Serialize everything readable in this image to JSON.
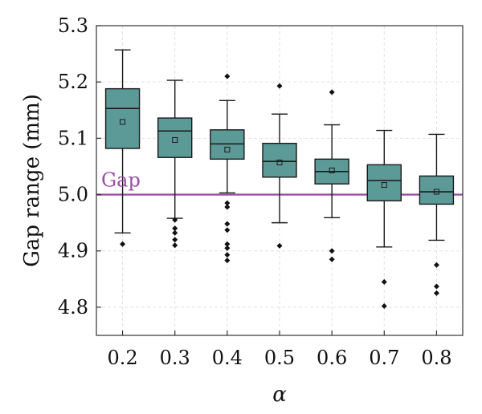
{
  "chart_data": {
    "type": "box",
    "xlabel": "α",
    "ylabel": "Gap range (mm)",
    "categories": [
      "0.2",
      "0.3",
      "0.4",
      "0.5",
      "0.6",
      "0.7",
      "0.8"
    ],
    "ylim": [
      4.75,
      5.3
    ],
    "yticks": [
      4.8,
      4.9,
      5.0,
      5.1,
      5.2,
      5.3
    ],
    "ytick_labels": [
      "4.8",
      "4.9",
      "5.0",
      "5.1",
      "5.2",
      "5.3"
    ],
    "grid": true,
    "box_color": "#5b9a96",
    "box_edge_color": "#1a1a1a",
    "reference_line": {
      "label": "Gap",
      "value": 5.0,
      "color": "#9a4fa3"
    },
    "boxes": [
      {
        "category": "0.2",
        "whisker_low": 4.932,
        "q1": 5.082,
        "median": 5.153,
        "q3": 5.188,
        "whisker_high": 5.257,
        "mean": 5.129,
        "outliers": [
          4.912
        ]
      },
      {
        "category": "0.3",
        "whisker_low": 4.958,
        "q1": 5.066,
        "median": 5.113,
        "q3": 5.136,
        "whisker_high": 5.203,
        "mean": 5.097,
        "outliers": [
          4.955,
          4.94,
          4.932,
          4.92,
          4.91
        ]
      },
      {
        "category": "0.4",
        "whisker_low": 5.003,
        "q1": 5.063,
        "median": 5.09,
        "q3": 5.115,
        "whisker_high": 5.167,
        "mean": 5.08,
        "outliers": [
          5.21,
          4.985,
          4.978,
          4.948,
          4.937,
          4.912,
          4.905,
          4.893,
          4.883
        ]
      },
      {
        "category": "0.5",
        "whisker_low": 4.95,
        "q1": 5.031,
        "median": 5.059,
        "q3": 5.091,
        "whisker_high": 5.143,
        "mean": 5.057,
        "outliers": [
          5.193,
          4.909
        ]
      },
      {
        "category": "0.6",
        "whisker_low": 4.959,
        "q1": 5.019,
        "median": 5.041,
        "q3": 5.063,
        "whisker_high": 5.124,
        "mean": 5.043,
        "outliers": [
          5.182,
          4.9,
          4.885
        ]
      },
      {
        "category": "0.7",
        "whisker_low": 4.907,
        "q1": 4.989,
        "median": 5.025,
        "q3": 5.053,
        "whisker_high": 5.114,
        "mean": 5.017,
        "outliers": [
          4.845,
          4.802
        ]
      },
      {
        "category": "0.8",
        "whisker_low": 4.919,
        "q1": 4.983,
        "median": 5.005,
        "q3": 5.033,
        "whisker_high": 5.107,
        "mean": 5.005,
        "outliers": [
          4.875,
          4.837,
          4.825
        ]
      }
    ]
  }
}
